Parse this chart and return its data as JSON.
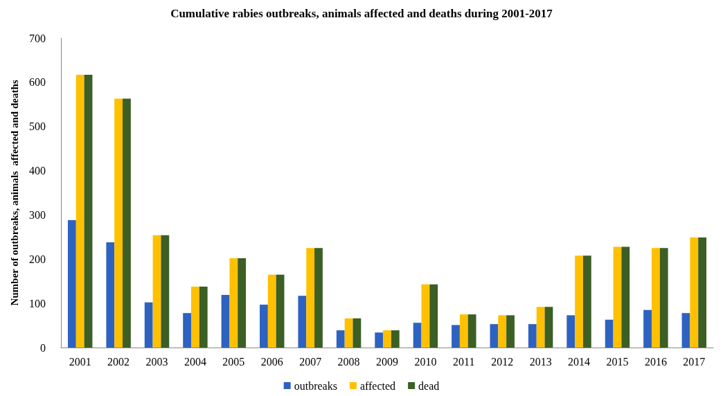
{
  "chart_data": {
    "type": "bar",
    "title": "Cumulative rabies outbreaks, animals affected and deaths during 2001-2017",
    "ylabel": "Number of outbreaks, animals  affected and deaths",
    "categories": [
      "2001",
      "2002",
      "2003",
      "2004",
      "2005",
      "2006",
      "2007",
      "2008",
      "2009",
      "2010",
      "2011",
      "2012",
      "2013",
      "2014",
      "2015",
      "2016",
      "2017"
    ],
    "series": [
      {
        "name": "outbreaks",
        "color": "#2e62c0",
        "values": [
          288,
          238,
          102,
          78,
          119,
          97,
          117,
          39,
          34,
          56,
          51,
          53,
          53,
          73,
          63,
          85,
          78
        ]
      },
      {
        "name": "affected",
        "color": "#ffc000",
        "values": [
          617,
          563,
          254,
          138,
          202,
          165,
          225,
          66,
          39,
          143,
          75,
          73,
          92,
          208,
          228,
          225,
          249
        ]
      },
      {
        "name": "dead",
        "color": "#3b5f25",
        "values": [
          617,
          563,
          254,
          138,
          202,
          165,
          225,
          66,
          39,
          143,
          75,
          73,
          92,
          208,
          228,
          225,
          249
        ]
      }
    ],
    "ylim": [
      0,
      700
    ],
    "yticks": [
      0,
      100,
      200,
      300,
      400,
      500,
      600,
      700
    ],
    "grid": false,
    "legend": "bottom"
  }
}
